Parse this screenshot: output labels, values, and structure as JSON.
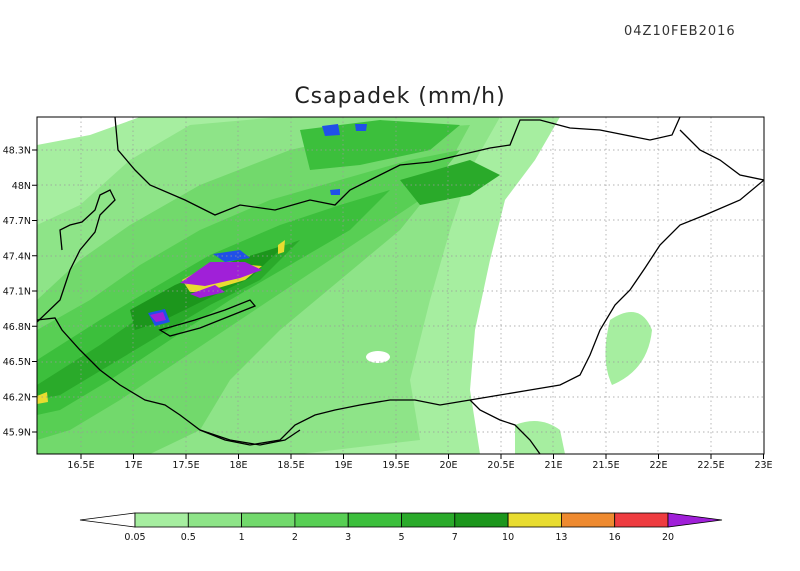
{
  "header": {
    "timestamp": "04Z10FEB2016",
    "title": "Csapadek (mm/h)"
  },
  "map": {
    "projection": "lat-lon",
    "lon_range": [
      16.1,
      23.0
    ],
    "lat_range": [
      45.7,
      48.55
    ],
    "x_ticks": [
      "16.5E",
      "17E",
      "17.5E",
      "18E",
      "18.5E",
      "19E",
      "19.5E",
      "20E",
      "20.5E",
      "21E",
      "21.5E",
      "22E",
      "22.5E",
      "23E"
    ],
    "y_ticks": [
      "48.3N",
      "48N",
      "47.7N",
      "47.4N",
      "47.1N",
      "46.8N",
      "46.5N",
      "46.2N",
      "45.9N"
    ],
    "grid": "dotted",
    "background_color": "#ffffff",
    "border_color": "#000000"
  },
  "colorbar": {
    "labels": [
      "0.05",
      "0.5",
      "1",
      "2",
      "3",
      "5",
      "7",
      "10",
      "13",
      "16",
      "20"
    ],
    "colors": [
      "#ffffff",
      "#a6eea0",
      "#8ee488",
      "#72d96c",
      "#58cf54",
      "#3cbf3c",
      "#2aaa2a",
      "#1c961c",
      "#e8dc30",
      "#ee8a30",
      "#ee3c40",
      "#a020d8"
    ]
  }
}
